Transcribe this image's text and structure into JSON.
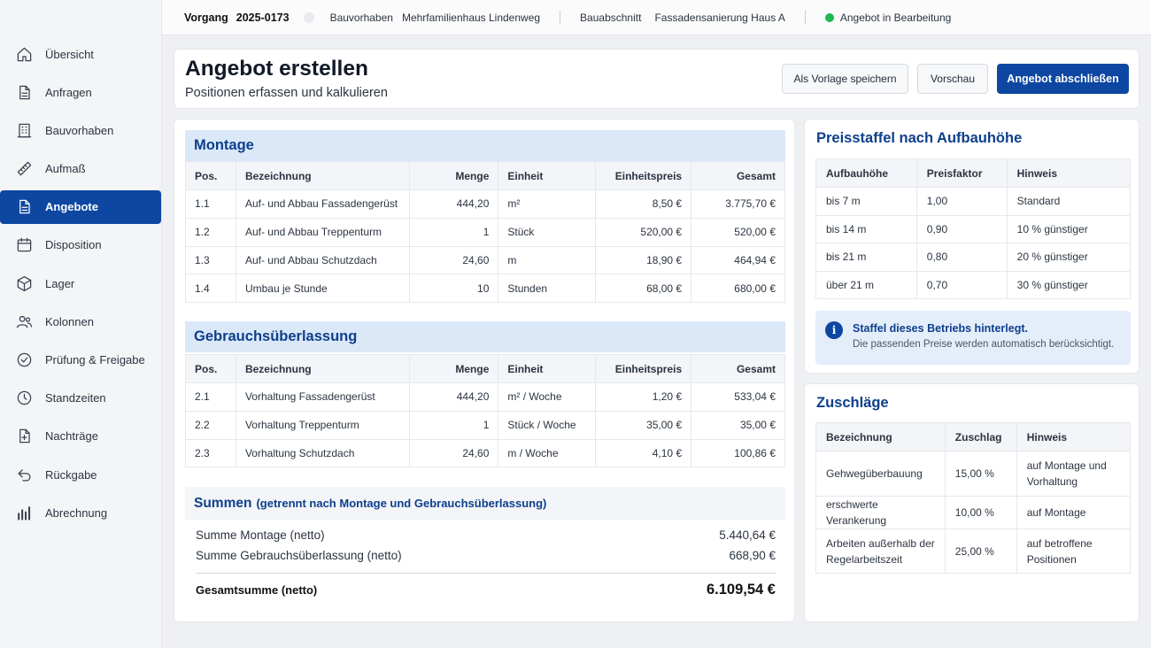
{
  "sidebar": {
    "items": [
      {
        "label": "Übersicht",
        "icon": "home-icon"
      },
      {
        "label": "Anfragen",
        "icon": "document-icon"
      },
      {
        "label": "Bauvorhaben",
        "icon": "building-icon"
      },
      {
        "label": "Aufmaß",
        "icon": "ruler-icon"
      },
      {
        "label": "Angebote",
        "icon": "document-icon",
        "active": true
      },
      {
        "label": "Disposition",
        "icon": "calendar-icon"
      },
      {
        "label": "Lager",
        "icon": "box-icon"
      },
      {
        "label": "Kolonnen",
        "icon": "users-icon"
      },
      {
        "label": "Prüfung & Freigabe",
        "icon": "check-circle-icon"
      },
      {
        "label": "Standzeiten",
        "icon": "clock-icon"
      },
      {
        "label": "Nachträge",
        "icon": "document-plus-icon"
      },
      {
        "label": "Rückgabe",
        "icon": "return-icon"
      },
      {
        "label": "Abrechnung",
        "icon": "bar-chart-icon"
      }
    ]
  },
  "topbar": {
    "vorgang_label": "Vorgang",
    "vorgang_value": "2025-0173",
    "bauvorhaben_label": "Bauvorhaben",
    "bauvorhaben_value": "Mehrfamilienhaus Lindenweg",
    "bauabschnitt_label": "Bauabschnitt",
    "bauabschnitt_value": "Fassadensanierung Haus A",
    "status": "Angebot in Bearbeitung",
    "status_color": "#1fb954"
  },
  "header": {
    "title": "Angebot erstellen",
    "subtitle": "Positionen erfassen und kalkulieren",
    "btn_template": "Als Vorlage speichern",
    "btn_preview": "Vorschau",
    "btn_finish": "Angebot abschließen"
  },
  "columns": {
    "pos": "Pos.",
    "bezeichnung": "Bezeichnung",
    "menge": "Menge",
    "einheit": "Einheit",
    "einheitspreis": "Einheitspreis",
    "gesamt": "Gesamt"
  },
  "montage": {
    "title": "Montage",
    "rows": [
      {
        "pos": "1.1",
        "bezeichnung": "Auf- und Abbau Fassadengerüst",
        "menge": "444,20",
        "einheit": "m²",
        "einheitspreis": "8,50 €",
        "gesamt": "3.775,70 €"
      },
      {
        "pos": "1.2",
        "bezeichnung": "Auf- und Abbau Treppenturm",
        "menge": "1",
        "einheit": "Stück",
        "einheitspreis": "520,00 €",
        "gesamt": "520,00 €"
      },
      {
        "pos": "1.3",
        "bezeichnung": "Auf- und Abbau Schutzdach",
        "menge": "24,60",
        "einheit": "m",
        "einheitspreis": "18,90 €",
        "gesamt": "464,94 €"
      },
      {
        "pos": "1.4",
        "bezeichnung": "Umbau je Stunde",
        "menge": "10",
        "einheit": "Stunden",
        "einheitspreis": "68,00 €",
        "gesamt": "680,00 €"
      }
    ]
  },
  "gebrauch": {
    "title": "Gebrauchsüberlassung",
    "rows": [
      {
        "pos": "2.1",
        "bezeichnung": "Vorhaltung Fassadengerüst",
        "menge": "444,20",
        "einheit": "m² / Woche",
        "einheitspreis": "1,20 €",
        "gesamt": "533,04 €"
      },
      {
        "pos": "2.2",
        "bezeichnung": "Vorhaltung Treppenturm",
        "menge": "1",
        "einheit": "Stück / Woche",
        "einheitspreis": "35,00 €",
        "gesamt": "35,00 €"
      },
      {
        "pos": "2.3",
        "bezeichnung": "Vorhaltung Schutzdach",
        "menge": "24,60",
        "einheit": "m / Woche",
        "einheitspreis": "4,10 €",
        "gesamt": "100,86 €"
      }
    ]
  },
  "summen": {
    "title": "Summen",
    "subtitle": "(getrennt nach Montage und Gebrauchsüberlassung)",
    "montage_label": "Summe Montage (netto)",
    "montage_value": "5.440,64 €",
    "gebrauch_label": "Summe Gebrauchsüberlassung (netto)",
    "gebrauch_value": "668,90 €",
    "total_label": "Gesamtsumme (netto)",
    "total_value": "6.109,54 €"
  },
  "staffel": {
    "title": "Preisstaffel nach Aufbauhöhe",
    "col_hoehe": "Aufbauhöhe",
    "col_faktor": "Preisfaktor",
    "col_hinweis": "Hinweis",
    "rows": [
      {
        "hoehe": "bis 7 m",
        "faktor": "1,00",
        "hinweis": "Standard"
      },
      {
        "hoehe": "bis 14 m",
        "faktor": "0,90",
        "hinweis": "10 % günstiger"
      },
      {
        "hoehe": "bis 21 m",
        "faktor": "0,80",
        "hinweis": "20 % günstiger"
      },
      {
        "hoehe": "über 21 m",
        "faktor": "0,70",
        "hinweis": "30 % günstiger"
      }
    ],
    "info_icon": "i",
    "info_title": "Staffel dieses Betriebs hinterlegt.",
    "info_text": "Die passenden Preise werden automatisch berücksichtigt."
  },
  "zuschlaege": {
    "title": "Zuschläge",
    "col_bezeichnung": "Bezeichnung",
    "col_zuschlag": "Zuschlag",
    "col_hinweis": "Hinweis",
    "rows": [
      {
        "bezeichnung": "Gehwegüberbauung",
        "zuschlag": "15,00 %",
        "hinweis": "auf Montage und Vorhaltung"
      },
      {
        "bezeichnung": "erschwerte Verankerung",
        "zuschlag": "10,00 %",
        "hinweis": "auf Montage"
      },
      {
        "bezeichnung": "Arbeiten außerhalb der Regelarbeitszeit",
        "zuschlag": "25,00 %",
        "hinweis": "auf betroffene Positionen"
      }
    ]
  }
}
